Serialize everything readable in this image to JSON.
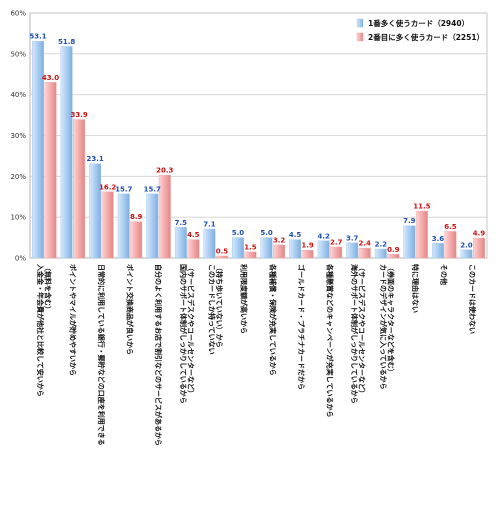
{
  "chart_data": {
    "type": "bar",
    "ylim": [
      0,
      60
    ],
    "yticks": [
      "0%",
      "10%",
      "20%",
      "30%",
      "40%",
      "50%",
      "60%"
    ],
    "grid": true,
    "legend_position": "top-right",
    "categories": [
      "入金金・年会費が他社と比較して安いから（無料を含む）",
      "ポイントやマイルが貯めやすいから",
      "日常的に利用している銀行・郵貯などの口座を利用できる",
      "ポイント交換商品が良いから",
      "自分のよく利用するお店で割引などのサービスがあるから",
      "国内のサポート体制がしっかりしているから（サービスデスクやコールセンターなど）",
      "このカードしか持っていない（持ち歩いていない）から",
      "利用限度額が高いから",
      "各種補償・保険が充実しているから",
      "ゴールドカード・プラチナカードだから",
      "各種懸賞などのキャンペーンが充実しているから",
      "海外のサポート体制がしっかりしているから（サービスデスクやコールセンターなど）",
      "カードのデザインが気に入っているから（券面のキャラクターなどを含む）",
      "特に理由はない",
      "その他",
      "このカードは使わない"
    ],
    "series": [
      {
        "name": "1番多く使うカード（2940）",
        "color": "#9cc3ec",
        "label_color": "#1f4fb4",
        "values": [
          53.1,
          51.8,
          23.1,
          15.7,
          15.7,
          7.5,
          7.1,
          5.0,
          5.0,
          4.5,
          4.2,
          3.7,
          2.2,
          7.9,
          3.6,
          2.0
        ],
        "labels": [
          "53.1",
          "51.8",
          "23.1",
          "15.7",
          "15.7",
          "7.5",
          "7.1",
          "5.0",
          "5.0",
          "4.5",
          "4.2",
          "3.7",
          "2.2",
          "7.9",
          "3.6",
          "2.0"
        ]
      },
      {
        "name": "2番目に多く使うカード（2251）",
        "color": "#f2a2a2",
        "label_color": "#cc1111",
        "values": [
          43.0,
          33.9,
          16.2,
          8.9,
          20.3,
          4.5,
          0.5,
          1.5,
          3.2,
          1.9,
          2.7,
          2.4,
          0.9,
          11.5,
          6.5,
          4.9
        ],
        "labels": [
          "43.0",
          "33.9",
          "16.2",
          "8.9",
          "20.3",
          "4.5",
          "0.5",
          "1.5",
          "3.2",
          "1.9",
          "2.7",
          "2.4",
          "0.9",
          "11.5",
          "6.5",
          "4.9"
        ]
      }
    ]
  }
}
